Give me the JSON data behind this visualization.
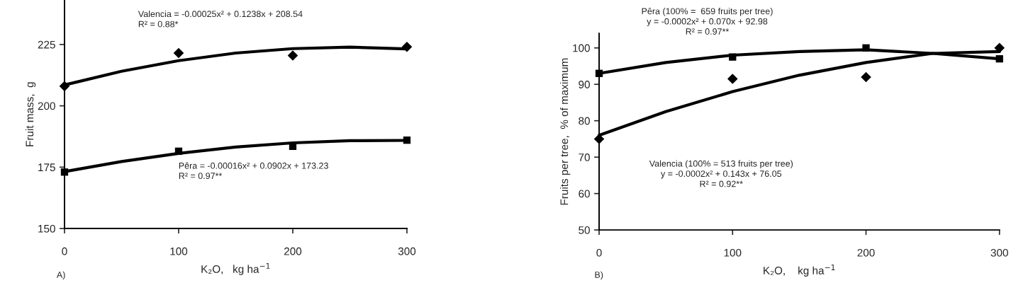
{
  "chart_data": [
    {
      "type": "scatter",
      "xlabel": "K₂O,   kg ha$^{−1}$",
      "ylabel": "Fruit mass,  g",
      "xlim": [
        0,
        300
      ],
      "xticks": [
        0,
        100,
        200,
        300
      ],
      "ylim": [
        150,
        243
      ],
      "yticks": [
        150,
        175,
        200,
        225
      ],
      "grid": false,
      "legend": false,
      "series": [
        {
          "marker": "diamond",
          "color": "#000000",
          "x": [
            0,
            100,
            200,
            300
          ],
          "values": [
            208,
            221.5,
            220.5,
            224
          ]
        },
        {
          "type": "line",
          "marker": "none",
          "color": "#000000",
          "x": [
            0,
            50,
            100,
            150,
            200,
            250,
            300
          ],
          "values": [
            208.5,
            214.1,
            218.4,
            221.5,
            223.3,
            223.9,
            223.2
          ]
        },
        {
          "marker": "square",
          "color": "#000000",
          "x": [
            0,
            100,
            200,
            300
          ],
          "values": [
            173,
            181.5,
            183.5,
            186
          ]
        },
        {
          "type": "line",
          "marker": "none",
          "color": "#000000",
          "x": [
            0,
            50,
            100,
            150,
            200,
            250,
            300
          ],
          "values": [
            173.2,
            177.3,
            180.6,
            183.2,
            184.9,
            185.8,
            185.9
          ]
        }
      ],
      "annotations": [
        "Valencia = -0.00025x² + 0.1238x + 208.54\nR² = 0.88*",
        "Pêra = -0.00016x² + 0.0902x + 173.23\nR² = 0.97**",
        "A)"
      ]
    },
    {
      "type": "scatter",
      "xlabel": "K₂O,    kg ha$^{−1}$",
      "ylabel": "Fruits per tree,  % of maximum",
      "xlim": [
        0,
        300
      ],
      "xticks": [
        0,
        100,
        200,
        300
      ],
      "ylim": [
        50,
        104
      ],
      "yticks": [
        50,
        60,
        70,
        80,
        90,
        100
      ],
      "grid": false,
      "legend": false,
      "series": [
        {
          "marker": "square",
          "color": "#000000",
          "x": [
            0,
            100,
            200,
            300
          ],
          "values": [
            93,
            97.5,
            100,
            97
          ]
        },
        {
          "type": "line",
          "marker": "none",
          "color": "#000000",
          "x": [
            0,
            50,
            100,
            150,
            200,
            250,
            300
          ],
          "values": [
            93,
            96,
            98,
            99,
            99.5,
            98.5,
            97
          ]
        },
        {
          "marker": "diamond",
          "color": "#000000",
          "x": [
            0,
            100,
            200,
            300
          ],
          "values": [
            75,
            91.5,
            92,
            100
          ]
        },
        {
          "type": "line",
          "marker": "none",
          "color": "#000000",
          "x": [
            0,
            50,
            100,
            150,
            200,
            250,
            300
          ],
          "values": [
            76,
            82.5,
            88,
            92.5,
            96,
            98.5,
            99
          ]
        }
      ],
      "annotations": [
        "Pêra (100% =  659 fruits per tree)\ny = -0.0002x² + 0.070x + 92.98\nR² = 0.97**",
        "Valencia (100% = 513 fruits per tree)\ny = -0.0002x² + 0.143x + 76.05\nR² = 0.92**",
        "B)"
      ]
    }
  ]
}
